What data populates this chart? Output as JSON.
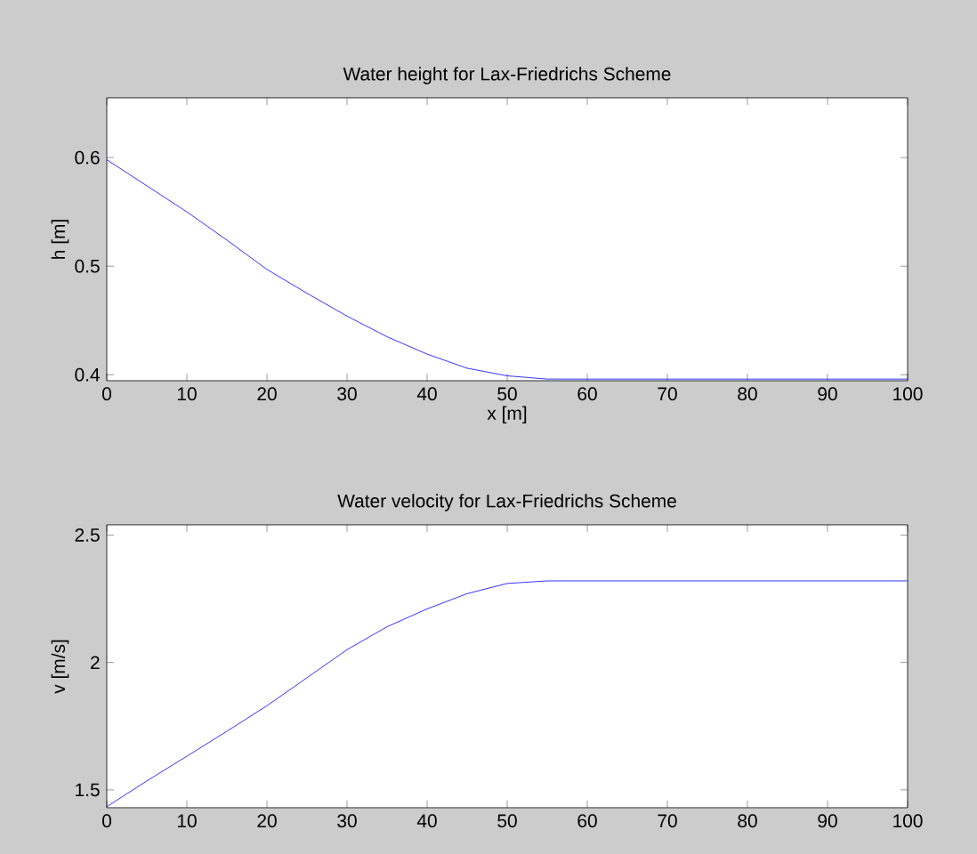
{
  "chart_data": [
    {
      "type": "line",
      "title": "Water height for Lax-Friedrichs Scheme",
      "xlabel": "x [m]",
      "ylabel": "h [m]",
      "x": [
        0,
        5,
        10,
        15,
        20,
        25,
        30,
        35,
        40,
        45,
        50,
        55,
        100
      ],
      "series": [
        {
          "color": "#0000ff",
          "values": [
            0.598,
            0.574,
            0.55,
            0.524,
            0.497,
            0.475,
            0.454,
            0.435,
            0.419,
            0.406,
            0.399,
            0.396,
            0.396
          ]
        }
      ],
      "xlim": [
        0,
        100
      ],
      "ylim": [
        0.3945,
        0.655
      ],
      "xticks": [
        0,
        10,
        20,
        30,
        40,
        50,
        60,
        70,
        80,
        90,
        100
      ],
      "yticks": [
        0.4,
        0.5,
        0.6
      ]
    },
    {
      "type": "line",
      "title": "Water velocity for Lax-Friedrichs Scheme",
      "ylabel": "v [m/s]",
      "x": [
        0,
        5,
        10,
        15,
        20,
        25,
        30,
        35,
        40,
        45,
        50,
        55,
        100
      ],
      "series": [
        {
          "color": "#0000ff",
          "values": [
            1.434,
            1.535,
            1.632,
            1.73,
            1.83,
            1.94,
            2.05,
            2.14,
            2.21,
            2.27,
            2.31,
            2.32,
            2.32
          ]
        }
      ],
      "xlim": [
        0,
        100
      ],
      "ylim": [
        1.43,
        2.54
      ],
      "xticks": [
        0,
        10,
        20,
        30,
        40,
        50,
        60,
        70,
        80,
        90,
        100
      ],
      "yticks": [
        1.5,
        2,
        2.5
      ]
    }
  ]
}
